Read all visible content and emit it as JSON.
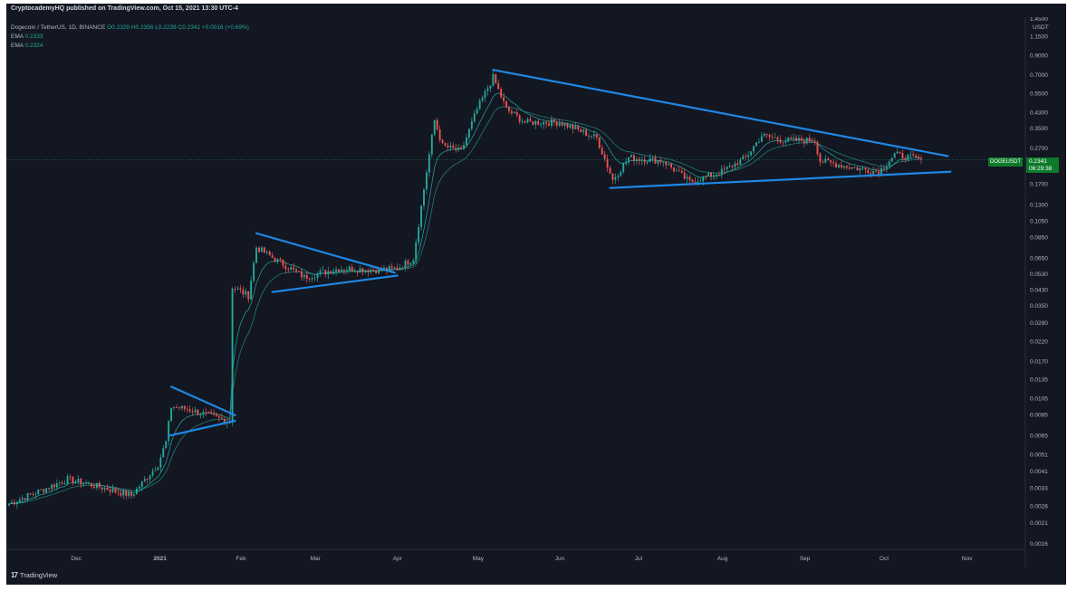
{
  "header": {
    "published": "CryptocademyHQ published on TradingView.com, Oct 15, 2021 13:30 UTC-4"
  },
  "legend": {
    "symbol": "Dogecoin / TetherUS, 1D, BINANCE",
    "ohlc": "O0.2329 H0.2356 L0.2239 C0.2341 +0.0016 (+0.69%)",
    "ema1_label": "EMA",
    "ema1_value": "0.2333",
    "ema2_label": "EMA",
    "ema2_value": "0.2324"
  },
  "price_tag": {
    "symbol": "DOGEUSDT",
    "price": "0.2341",
    "countdown": "06:29:38"
  },
  "footer": {
    "brand": "TradingView",
    "logo": "17"
  },
  "colors": {
    "background": "#131722",
    "up": "#26a69a",
    "down": "#ef5350",
    "ema": "#26a69a",
    "trendline": "#1e88e5",
    "price_tag": "#0d7a2a"
  },
  "chart_data": {
    "type": "candlestick",
    "scale": "log",
    "axis_unit": "USDT",
    "x_ticks": [
      "Dec",
      "2021",
      "Feb",
      "Mar",
      "Apr",
      "May",
      "Jun",
      "Jul",
      "Aug",
      "Sep",
      "Oct",
      "Nov"
    ],
    "y_ticks": [
      "1.4500",
      "1.1500",
      "0.9000",
      "0.7000",
      "0.5500",
      "0.4300",
      "0.3500",
      "0.2700",
      "0.1700",
      "0.1300",
      "0.1050",
      "0.0850",
      "0.0650",
      "0.0530",
      "0.0430",
      "0.0350",
      "0.0280",
      "0.0220",
      "0.0170",
      "0.0135",
      "0.0105",
      "0.0085",
      "0.0065",
      "0.0051",
      "0.0041",
      "0.0033",
      "0.0026",
      "0.0021",
      "0.0016"
    ],
    "x_start": "2020-11-06",
    "x_end": "2021-10-15",
    "last_price": 0.2341,
    "price_path": [
      [
        "2020-11-06",
        0.0027
      ],
      [
        "2020-11-20",
        0.0033
      ],
      [
        "2020-11-28",
        0.0037
      ],
      [
        "2020-12-12",
        0.0033
      ],
      [
        "2020-12-22",
        0.003
      ],
      [
        "2021-01-01",
        0.0045
      ],
      [
        "2021-01-04",
        0.006
      ],
      [
        "2021-01-06",
        0.0095
      ],
      [
        "2021-01-12",
        0.0092
      ],
      [
        "2021-01-20",
        0.0085
      ],
      [
        "2021-01-28",
        0.0078
      ],
      [
        "2021-01-29",
        0.045
      ],
      [
        "2021-02-04",
        0.04
      ],
      [
        "2021-02-07",
        0.075
      ],
      [
        "2021-02-15",
        0.063
      ],
      [
        "2021-02-25",
        0.051
      ],
      [
        "2021-03-10",
        0.057
      ],
      [
        "2021-03-25",
        0.056
      ],
      [
        "2021-04-01",
        0.057
      ],
      [
        "2021-04-07",
        0.065
      ],
      [
        "2021-04-12",
        0.2
      ],
      [
        "2021-04-15",
        0.39
      ],
      [
        "2021-04-18",
        0.28
      ],
      [
        "2021-04-25",
        0.26
      ],
      [
        "2021-05-01",
        0.45
      ],
      [
        "2021-05-07",
        0.68
      ],
      [
        "2021-05-12",
        0.45
      ],
      [
        "2021-05-19",
        0.38
      ],
      [
        "2021-06-01",
        0.38
      ],
      [
        "2021-06-15",
        0.31
      ],
      [
        "2021-06-21",
        0.18
      ],
      [
        "2021-06-27",
        0.24
      ],
      [
        "2021-07-10",
        0.23
      ],
      [
        "2021-07-20",
        0.175
      ],
      [
        "2021-08-01",
        0.2
      ],
      [
        "2021-08-10",
        0.24
      ],
      [
        "2021-08-16",
        0.32
      ],
      [
        "2021-08-25",
        0.3
      ],
      [
        "2021-09-05",
        0.3
      ],
      [
        "2021-09-07",
        0.23
      ],
      [
        "2021-09-20",
        0.21
      ],
      [
        "2021-09-29",
        0.2
      ],
      [
        "2021-10-05",
        0.25
      ],
      [
        "2021-10-15",
        0.2341
      ]
    ],
    "trendlines": [
      [
        [
          "2021-01-06",
          0.0123
        ],
        [
          "2021-01-30",
          0.0085
        ]
      ],
      [
        [
          "2021-01-05",
          0.0065
        ],
        [
          "2021-01-30",
          0.0079
        ]
      ],
      [
        [
          "2021-02-07",
          0.09
        ],
        [
          "2021-03-31",
          0.054
        ]
      ],
      [
        [
          "2021-02-13",
          0.042
        ],
        [
          "2021-04-01",
          0.052
        ]
      ],
      [
        [
          "2021-05-07",
          0.75
        ],
        [
          "2021-10-25",
          0.245
        ]
      ],
      [
        [
          "2021-06-20",
          0.162
        ],
        [
          "2021-10-26",
          0.2
        ]
      ]
    ]
  }
}
